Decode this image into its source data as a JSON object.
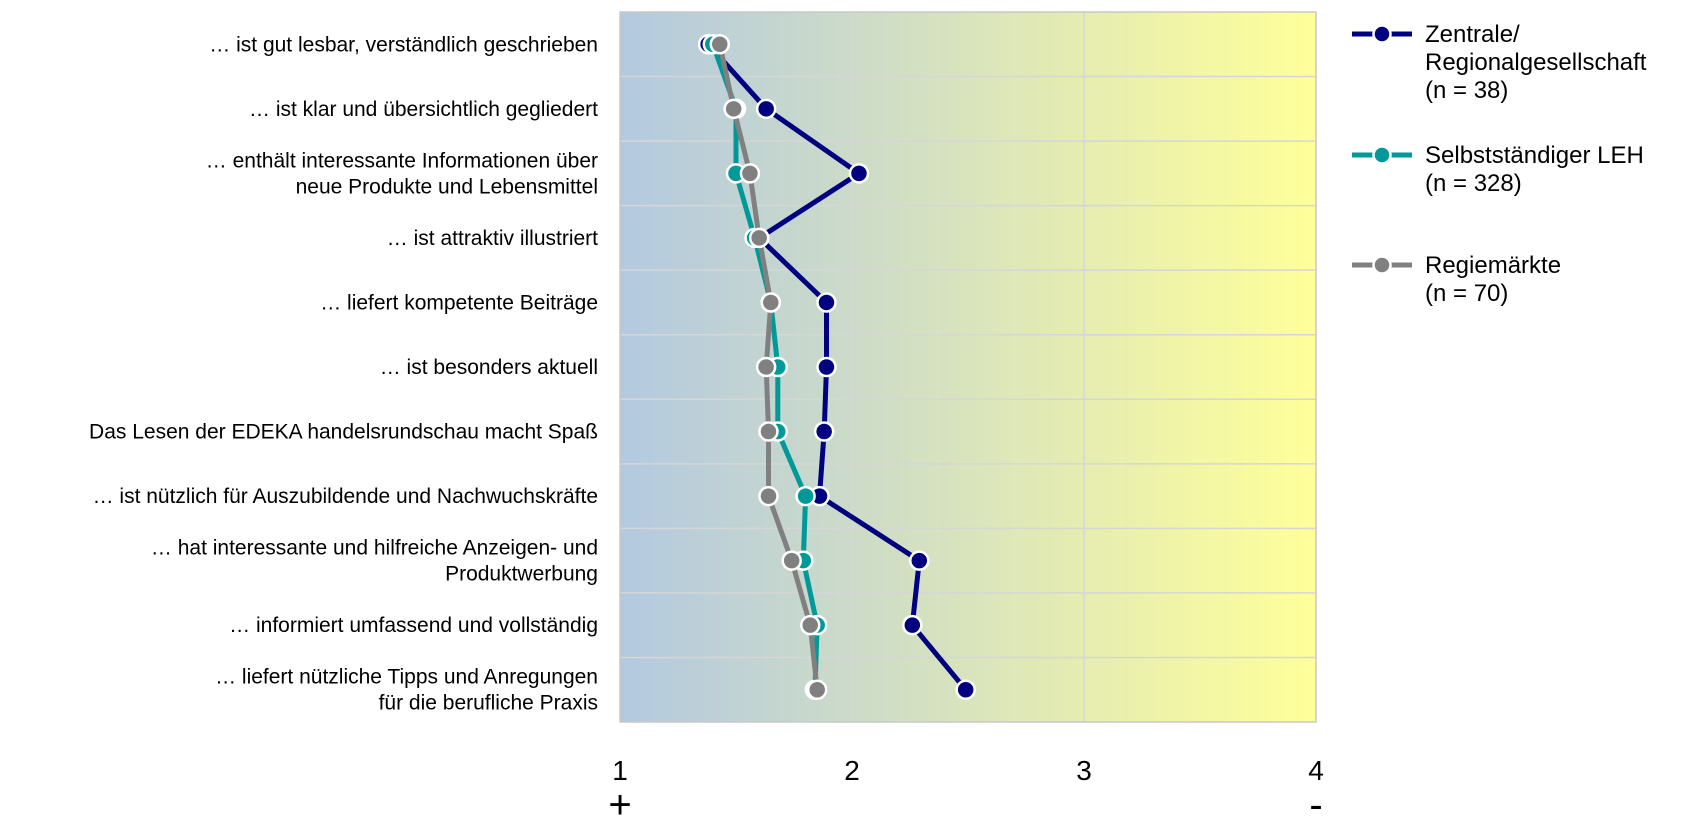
{
  "chart_data": {
    "type": "line",
    "orientation": "horizontal",
    "title": "",
    "xlabel": "",
    "ylabel": "",
    "xlim": [
      1,
      4
    ],
    "x_ticks": [
      "1",
      "2",
      "3",
      "4"
    ],
    "scale_signs": [
      "+",
      "-"
    ],
    "grid": true,
    "legend_position": "top-right",
    "background_gradient": [
      "#b3c9e0",
      "#ffff99"
    ],
    "categories": [
      [
        "… ist gut lesbar, verständlich geschrieben"
      ],
      [
        "… ist klar und übersichtlich gegliedert"
      ],
      [
        "… enthält interessante Informationen über",
        "neue Produkte und Lebensmittel"
      ],
      [
        "… ist attraktiv illustriert"
      ],
      [
        "… liefert kompetente Beiträge"
      ],
      [
        "… ist besonders aktuell"
      ],
      [
        "Das Lesen der EDEKA handelsrundschau macht Spaß"
      ],
      [
        "… ist nützlich für Auszubildende und Nachwuchskräfte"
      ],
      [
        "… hat interessante und hilfreiche Anzeigen- und",
        "Produktwerbung"
      ],
      [
        "… informiert umfassend und vollständig"
      ],
      [
        "… liefert nützliche Tipps und Anregungen",
        "für die berufliche Praxis"
      ]
    ],
    "series": [
      {
        "name": [
          "Zentrale/",
          "Regionalgesellschaft",
          "(n = 38)"
        ],
        "color": "#000080",
        "values": [
          1.38,
          1.63,
          2.03,
          1.6,
          1.89,
          1.89,
          1.88,
          1.86,
          2.29,
          2.26,
          2.49
        ]
      },
      {
        "name": [
          "Selbstständiger LEH",
          "(n = 328)"
        ],
        "color": "#009999",
        "values": [
          1.4,
          1.5,
          1.5,
          1.58,
          1.65,
          1.68,
          1.68,
          1.8,
          1.79,
          1.85,
          1.84
        ]
      },
      {
        "name": [
          "Regiemärkte",
          "(n = 70)"
        ],
        "color": "#808080",
        "values": [
          1.43,
          1.49,
          1.56,
          1.6,
          1.65,
          1.63,
          1.64,
          1.64,
          1.74,
          1.82,
          1.85
        ]
      }
    ]
  }
}
